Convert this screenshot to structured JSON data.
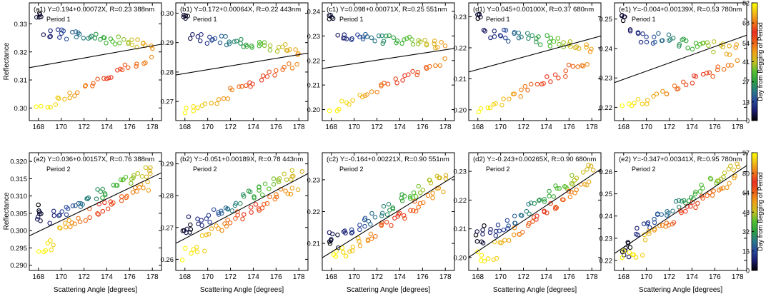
{
  "figure": {
    "x_label": "Scattering Angle [degrees]",
    "y_label": "Reflectance",
    "colorbar_label": "Day from Begging of Period"
  },
  "chart_data": [
    {
      "id": "a1",
      "type": "scatter",
      "title": "(a1) Y=0.194+0.00072X, R=0.23 388nm",
      "period": "Period 1",
      "xlim": [
        167.2,
        178.8
      ],
      "ylim": [
        0.2955,
        0.3375
      ],
      "xticks": [
        168,
        170,
        172,
        174,
        176,
        178
      ],
      "yticks": [
        0.3,
        0.31,
        0.32,
        0.33
      ],
      "ytick_labels": [
        "0.30",
        "0.31",
        "0.32",
        "0.33"
      ],
      "fit": {
        "intercept": 0.194,
        "slope": 0.00072
      },
      "ylow": 0.2995,
      "yhigh": 0.3345,
      "ybase": 0.3228,
      "spread": 0.0018
    },
    {
      "id": "b1",
      "type": "scatter",
      "title": "(b1) Y=0.172+0.00064X, R=0.22 443nm",
      "period": "Period 1",
      "xlim": [
        167.2,
        178.8
      ],
      "ylim": [
        0.2635,
        0.3035
      ],
      "xticks": [
        168,
        170,
        172,
        174,
        176,
        178
      ],
      "yticks": [
        0.27,
        0.28,
        0.29,
        0.3
      ],
      "ytick_labels": [
        "0.27",
        "0.28",
        "0.29",
        "0.30"
      ],
      "fit": {
        "intercept": 0.172,
        "slope": 0.00064
      },
      "ylow": 0.266,
      "yhigh": 0.3,
      "ybase": 0.2875,
      "spread": 0.0017
    },
    {
      "id": "c1",
      "type": "scatter",
      "title": "(c1) Y=0.098+0.00071X, R=0.25 551nm",
      "period": "Period 1",
      "xlim": [
        167.2,
        178.8
      ],
      "ylim": [
        0.1955,
        0.2435
      ],
      "xticks": [
        168,
        170,
        172,
        174,
        176,
        178
      ],
      "yticks": [
        0.2,
        0.21,
        0.22,
        0.23,
        0.24
      ],
      "ytick_labels": [
        "0.20",
        "0.21",
        "0.22",
        "0.23",
        "0.24"
      ],
      "fit": {
        "intercept": 0.098,
        "slope": 0.00071
      },
      "ylow": 0.2,
      "yhigh": 0.239,
      "ybase": 0.2258,
      "spread": 0.002
    },
    {
      "id": "d1",
      "type": "scatter",
      "title": "(d1) Y=0.045+0.00100X, R=0.37 680nm",
      "period": "Period 1",
      "xlim": [
        167.2,
        178.8
      ],
      "ylim": [
        0.1965,
        0.2345
      ],
      "xticks": [
        168,
        170,
        172,
        174,
        176,
        178
      ],
      "yticks": [
        0.2,
        0.21,
        0.22,
        0.23
      ],
      "ytick_labels": [
        "0.20",
        "0.21",
        "0.22",
        "0.23"
      ],
      "fit": {
        "intercept": 0.045,
        "slope": 0.001
      },
      "ylow": 0.1995,
      "yhigh": 0.231,
      "ybase": 0.2205,
      "spread": 0.0018
    },
    {
      "id": "e1",
      "type": "scatter",
      "title": "(e1) Y=-0.004+0.00139X, R=0.53 780nm",
      "period": "Period 1",
      "xlim": [
        167.2,
        178.8
      ],
      "ylim": [
        0.2155,
        0.2555
      ],
      "xticks": [
        168,
        170,
        172,
        174,
        176,
        178
      ],
      "yticks": [
        0.22,
        0.23,
        0.24,
        0.25
      ],
      "ytick_labels": [
        "0.22",
        "0.23",
        "0.24",
        "0.25"
      ],
      "fit": {
        "intercept": -0.004,
        "slope": 0.00139
      },
      "ylow": 0.2195,
      "yhigh": 0.2515,
      "ybase": 0.2395,
      "spread": 0.002
    },
    {
      "id": "a2",
      "type": "scatter",
      "title": "(a2) Y=0.036+0.00157X, R=0.76 388nm",
      "period": "Period 2",
      "xlim": [
        167.2,
        178.8
      ],
      "ylim": [
        0.2885,
        0.3225
      ],
      "xticks": [
        168,
        170,
        172,
        174,
        176,
        178
      ],
      "yticks": [
        0.29,
        0.295,
        0.3,
        0.305,
        0.31,
        0.315,
        0.32
      ],
      "ytick_labels": [
        "0.290",
        "0.295",
        "0.300",
        "0.305",
        "0.310",
        "0.315",
        "0.320"
      ],
      "fit": {
        "intercept": 0.036,
        "slope": 0.00157
      },
      "ylow": 0.2935,
      "yhigh": 0.3175,
      "ybase": 0.3045,
      "spread": 0.002
    },
    {
      "id": "b2",
      "type": "scatter",
      "title": "(b2) Y=-0.051+0.00189X, R=0.78 443nm",
      "period": "Period 2",
      "xlim": [
        167.2,
        178.8
      ],
      "ylim": [
        0.2565,
        0.2935
      ],
      "xticks": [
        168,
        170,
        172,
        174,
        176,
        178
      ],
      "yticks": [
        0.26,
        0.27,
        0.28,
        0.29
      ],
      "ytick_labels": [
        "0.26",
        "0.27",
        "0.28",
        "0.29"
      ],
      "fit": {
        "intercept": -0.051,
        "slope": 0.00189
      },
      "ylow": 0.2595,
      "yhigh": 0.289,
      "ybase": 0.2715,
      "spread": 0.0022
    },
    {
      "id": "c2",
      "type": "scatter",
      "title": "(c2) Y=-0.164+0.00221X, R=0.90 551nm",
      "period": "Period 2",
      "xlim": [
        167.2,
        178.8
      ],
      "ylim": [
        0.2015,
        0.2385
      ],
      "xticks": [
        168,
        170,
        172,
        174,
        176,
        178
      ],
      "yticks": [
        0.21,
        0.22,
        0.23
      ],
      "ytick_labels": [
        "0.21",
        "0.22",
        "0.23"
      ],
      "fit": {
        "intercept": -0.164,
        "slope": 0.00221
      },
      "ylow": 0.2045,
      "yhigh": 0.2355,
      "ybase": 0.2115,
      "spread": 0.0022
    },
    {
      "id": "d2",
      "type": "scatter",
      "title": "(d2) Y=-0.243+0.00265X, R=0.90 680nm",
      "period": "Period 2",
      "xlim": [
        167.2,
        178.8
      ],
      "ylim": [
        0.1955,
        0.2365
      ],
      "xticks": [
        168,
        170,
        172,
        174,
        176,
        178
      ],
      "yticks": [
        0.2,
        0.21,
        0.22,
        0.23
      ],
      "ytick_labels": [
        "0.20",
        "0.21",
        "0.22",
        "0.23"
      ],
      "fit": {
        "intercept": -0.243,
        "slope": 0.00265
      },
      "ylow": 0.1985,
      "yhigh": 0.233,
      "ybase": 0.2085,
      "spread": 0.0024
    },
    {
      "id": "e2",
      "type": "scatter",
      "title": "(e2) Y=-0.347+0.00341X, R=0.95 780nm",
      "period": "Period 2",
      "xlim": [
        167.2,
        178.8
      ],
      "ylim": [
        0.2155,
        0.2685
      ],
      "xticks": [
        168,
        170,
        172,
        174,
        176,
        178
      ],
      "yticks": [
        0.22,
        0.23,
        0.24,
        0.25,
        0.26
      ],
      "ytick_labels": [
        "0.22",
        "0.23",
        "0.24",
        "0.25",
        "0.26"
      ],
      "fit": {
        "intercept": -0.347,
        "slope": 0.00341
      },
      "ylow": 0.2195,
      "yhigh": 0.2655,
      "ybase": 0.2255,
      "spread": 0.0026
    }
  ],
  "colorbars": [
    {
      "id": "period-1",
      "min": 0,
      "max": 82,
      "ticks": [
        0,
        13,
        27,
        41,
        54,
        68,
        82
      ],
      "tick_labels": [
        "0",
        "13",
        "27",
        "41",
        "54",
        "68",
        "82"
      ]
    },
    {
      "id": "period-2",
      "min": 0,
      "max": 97,
      "ticks": [
        0,
        16,
        32,
        48,
        64,
        80,
        97
      ],
      "tick_labels": [
        "0",
        "16",
        "32",
        "48",
        "64",
        "80",
        "97"
      ]
    }
  ],
  "colormap": [
    "#000000",
    "#1a1a6e",
    "#2a4a9e",
    "#2a7a8a",
    "#2aa040",
    "#55c030",
    "#c8c020",
    "#f0a018",
    "#f06018",
    "#e83020",
    "#f07818",
    "#f0c018",
    "#ffff00"
  ]
}
